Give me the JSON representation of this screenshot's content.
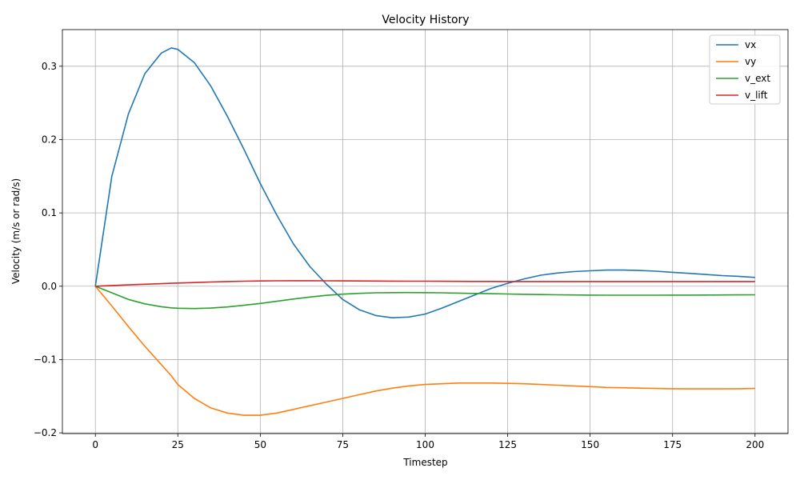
{
  "chart_data": {
    "type": "line",
    "title": "Velocity History",
    "xlabel": "Timestep",
    "ylabel": "Velocity (m/s or rad/s)",
    "xlim": [
      -10,
      210
    ],
    "ylim": [
      -0.201,
      0.35
    ],
    "xticks": [
      0,
      25,
      50,
      75,
      100,
      125,
      150,
      175,
      200
    ],
    "yticks": [
      -0.2,
      -0.1,
      0.0,
      0.1,
      0.2,
      0.3
    ],
    "ytick_labels": [
      "−0.2",
      "−0.1",
      "0.0",
      "0.1",
      "0.2",
      "0.3"
    ],
    "grid": true,
    "legend_position": "top-right",
    "x": [
      0,
      5,
      10,
      15,
      20,
      23,
      25,
      30,
      35,
      40,
      45,
      50,
      55,
      60,
      65,
      70,
      75,
      80,
      85,
      90,
      95,
      100,
      105,
      110,
      115,
      120,
      125,
      130,
      135,
      140,
      145,
      150,
      155,
      160,
      165,
      170,
      175,
      180,
      185,
      190,
      195,
      200
    ],
    "series": [
      {
        "name": "vx",
        "color": "#1f77b4",
        "values": [
          0.0,
          0.15,
          0.235,
          0.29,
          0.318,
          0.325,
          0.323,
          0.305,
          0.273,
          0.232,
          0.187,
          0.14,
          0.097,
          0.058,
          0.027,
          0.003,
          -0.018,
          -0.032,
          -0.04,
          -0.043,
          -0.042,
          -0.038,
          -0.03,
          -0.021,
          -0.012,
          -0.003,
          0.004,
          0.01,
          0.015,
          0.018,
          0.02,
          0.021,
          0.022,
          0.022,
          0.0215,
          0.0205,
          0.019,
          0.0175,
          0.016,
          0.0145,
          0.0135,
          0.012
        ]
      },
      {
        "name": "vy",
        "color": "#ff7f0e",
        "values": [
          0.0,
          -0.027,
          -0.055,
          -0.082,
          -0.107,
          -0.122,
          -0.134,
          -0.153,
          -0.166,
          -0.173,
          -0.176,
          -0.176,
          -0.173,
          -0.168,
          -0.163,
          -0.158,
          -0.153,
          -0.148,
          -0.143,
          -0.139,
          -0.136,
          -0.134,
          -0.133,
          -0.132,
          -0.132,
          -0.132,
          -0.1325,
          -0.133,
          -0.134,
          -0.135,
          -0.136,
          -0.137,
          -0.138,
          -0.1385,
          -0.139,
          -0.1395,
          -0.1398,
          -0.14,
          -0.14,
          -0.14,
          -0.1398,
          -0.1395
        ]
      },
      {
        "name": "v_ext",
        "color": "#2ca02c",
        "values": [
          0.0,
          -0.009,
          -0.018,
          -0.024,
          -0.028,
          -0.0295,
          -0.03,
          -0.0305,
          -0.0298,
          -0.0283,
          -0.026,
          -0.0235,
          -0.0205,
          -0.0175,
          -0.0148,
          -0.0125,
          -0.0108,
          -0.0097,
          -0.009,
          -0.0087,
          -0.0086,
          -0.0087,
          -0.009,
          -0.0094,
          -0.0098,
          -0.0102,
          -0.0106,
          -0.011,
          -0.0114,
          -0.0117,
          -0.0119,
          -0.0121,
          -0.0122,
          -0.0122,
          -0.0122,
          -0.0122,
          -0.0121,
          -0.0121,
          -0.012,
          -0.0119,
          -0.0118,
          -0.0117
        ]
      },
      {
        "name": "v_lift",
        "color": "#d62728",
        "values": [
          0.0,
          0.001,
          0.0018,
          0.0027,
          0.0035,
          0.004,
          0.0043,
          0.005,
          0.0058,
          0.0064,
          0.0069,
          0.0072,
          0.0074,
          0.0075,
          0.0075,
          0.0074,
          0.0073,
          0.0072,
          0.0071,
          0.007,
          0.0069,
          0.0068,
          0.0067,
          0.0066,
          0.0065,
          0.0065,
          0.0064,
          0.0064,
          0.0064,
          0.0064,
          0.0064,
          0.0064,
          0.0064,
          0.0064,
          0.0064,
          0.0064,
          0.0064,
          0.0064,
          0.0064,
          0.0064,
          0.0064,
          0.0064
        ]
      }
    ]
  }
}
